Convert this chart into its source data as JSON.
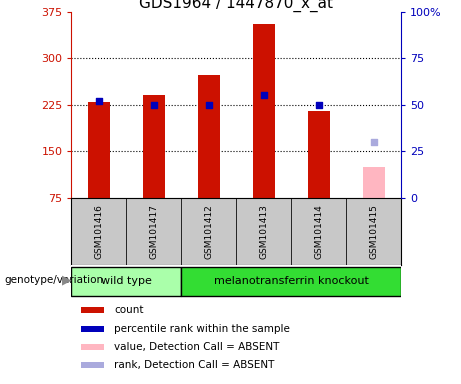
{
  "title": "GDS1964 / 1447870_x_at",
  "samples": [
    "GSM101416",
    "GSM101417",
    "GSM101412",
    "GSM101413",
    "GSM101414",
    "GSM101415"
  ],
  "count_values": [
    230,
    240,
    272,
    355,
    215,
    null
  ],
  "absent_value": 125,
  "percentile_values": [
    52,
    50,
    50,
    55,
    50,
    null
  ],
  "absent_rank_pct": 30,
  "ylim_left": [
    75,
    375
  ],
  "ylim_right": [
    0,
    100
  ],
  "yticks_left": [
    75,
    150,
    225,
    300,
    375
  ],
  "yticks_right": [
    0,
    25,
    50,
    75,
    100
  ],
  "bar_color_red": "#CC1100",
  "bar_color_pink": "#FFB6C1",
  "dot_color_blue": "#0000BB",
  "dot_color_lightblue": "#AAAADD",
  "bg_label": "#C8C8C8",
  "bg_wildtype": "#AAFFAA",
  "bg_knockout": "#33DD33",
  "bar_width": 0.4,
  "legend_items": [
    {
      "color": "#CC1100",
      "shape": "square",
      "label": "count"
    },
    {
      "color": "#0000BB",
      "shape": "square",
      "label": "percentile rank within the sample"
    },
    {
      "color": "#FFB6C1",
      "shape": "square",
      "label": "value, Detection Call = ABSENT"
    },
    {
      "color": "#AAAADD",
      "shape": "square",
      "label": "rank, Detection Call = ABSENT"
    }
  ]
}
